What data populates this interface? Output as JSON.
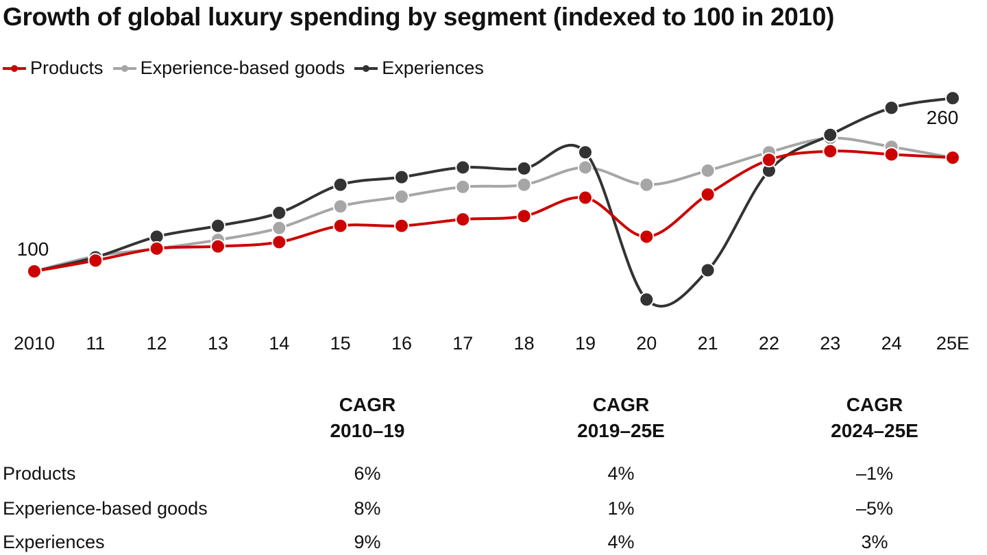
{
  "chart_data": {
    "type": "line",
    "title": "Growth of global luxury spending by segment (indexed to 100 in 2010)",
    "categories": [
      "2010",
      "11",
      "12",
      "13",
      "14",
      "15",
      "16",
      "17",
      "18",
      "19",
      "20",
      "21",
      "22",
      "23",
      "24",
      "25E"
    ],
    "series": [
      {
        "name": "Products",
        "color": "#cc0000",
        "values": [
          100,
          110,
          121,
          123,
          127,
          142,
          142,
          148,
          151,
          168,
          132,
          171,
          203,
          211,
          208,
          205
        ]
      },
      {
        "name": "Experience-based goods",
        "color": "#a6a6a6",
        "values": [
          100,
          114,
          121,
          129,
          140,
          160,
          169,
          178,
          180,
          196,
          180,
          193,
          210,
          223,
          215,
          205
        ]
      },
      {
        "name": "Experiences",
        "color": "#333333",
        "values": [
          100,
          113,
          132,
          142,
          154,
          180,
          187,
          196,
          195,
          210,
          74,
          101,
          193,
          226,
          251,
          260
        ]
      }
    ],
    "annotations": [
      "100",
      "260"
    ],
    "ylim": [
      60,
      270
    ]
  },
  "table": {
    "headers": [
      [
        "CAGR",
        "2010–19"
      ],
      [
        "CAGR",
        "2019–25E"
      ],
      [
        "CAGR",
        "2024–25E"
      ]
    ],
    "rows": [
      {
        "label": "Products",
        "values": [
          "6%",
          "4%",
          "–1%"
        ]
      },
      {
        "label": "Experience-based goods",
        "values": [
          "8%",
          "1%",
          "–5%"
        ]
      },
      {
        "label": "Experiences",
        "values": [
          "9%",
          "4%",
          "3%"
        ]
      }
    ]
  }
}
